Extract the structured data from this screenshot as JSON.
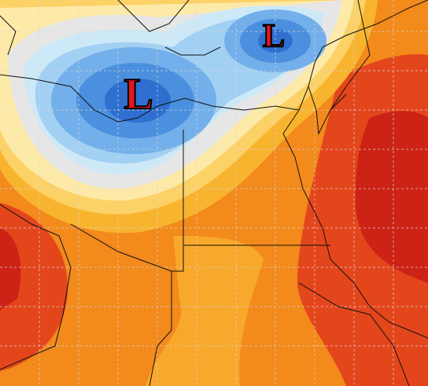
{
  "map": {
    "labels": [
      "L",
      "L"
    ]
  }
}
